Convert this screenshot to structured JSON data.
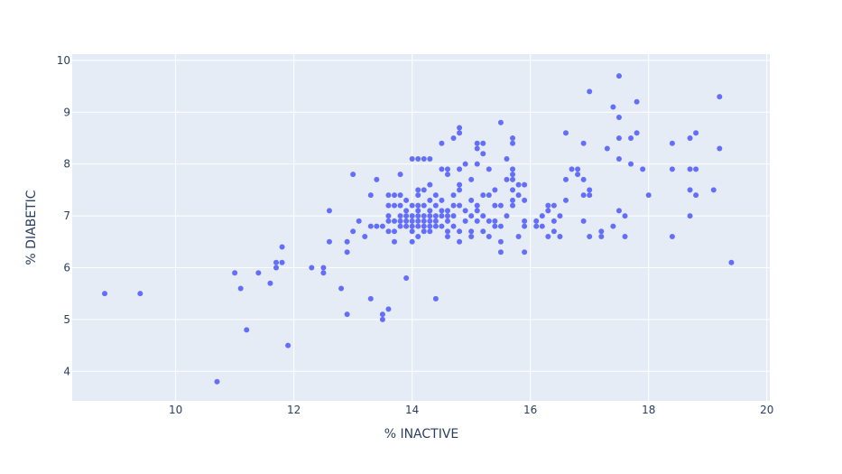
{
  "colors": {
    "plot_bg": "#e5ecf6",
    "grid": "#ffffff",
    "marker": "#636efa",
    "text": "#2a3f5f"
  },
  "chart_data": {
    "type": "scatter",
    "xlabel": "% INACTIVE",
    "ylabel": "% DIABETIC",
    "xlim": [
      8.25,
      20.05
    ],
    "ylim": [
      3.43,
      10.12
    ],
    "xticks": [
      10,
      12,
      14,
      16,
      18,
      20
    ],
    "yticks": [
      4,
      5,
      6,
      7,
      8,
      9,
      10
    ],
    "grid": true,
    "legend": "none",
    "series": [
      {
        "points": [
          [
            8.8,
            5.5
          ],
          [
            9.4,
            5.5
          ],
          [
            10.7,
            3.8
          ],
          [
            11.0,
            5.9
          ],
          [
            11.1,
            5.6
          ],
          [
            11.2,
            4.8
          ],
          [
            11.4,
            5.9
          ],
          [
            11.6,
            5.7
          ],
          [
            11.7,
            6.0
          ],
          [
            11.7,
            6.1
          ],
          [
            11.8,
            6.1
          ],
          [
            11.8,
            6.4
          ],
          [
            11.9,
            4.5
          ],
          [
            12.3,
            6.0
          ],
          [
            12.5,
            6.0
          ],
          [
            12.5,
            5.9
          ],
          [
            12.6,
            7.1
          ],
          [
            12.6,
            6.5
          ],
          [
            12.8,
            5.6
          ],
          [
            12.9,
            6.3
          ],
          [
            12.9,
            6.5
          ],
          [
            12.9,
            5.1
          ],
          [
            13.0,
            7.8
          ],
          [
            13.0,
            6.7
          ],
          [
            13.1,
            6.9
          ],
          [
            13.2,
            6.6
          ],
          [
            13.3,
            7.4
          ],
          [
            13.3,
            6.8
          ],
          [
            13.3,
            5.4
          ],
          [
            13.4,
            7.7
          ],
          [
            13.4,
            6.8
          ],
          [
            13.5,
            6.8
          ],
          [
            13.5,
            5.1
          ],
          [
            13.5,
            5.0
          ],
          [
            13.6,
            7.2
          ],
          [
            13.6,
            7.4
          ],
          [
            13.6,
            7.0
          ],
          [
            13.6,
            6.9
          ],
          [
            13.6,
            6.7
          ],
          [
            13.6,
            5.2
          ],
          [
            13.7,
            7.4
          ],
          [
            13.7,
            7.2
          ],
          [
            13.7,
            6.9
          ],
          [
            13.7,
            6.7
          ],
          [
            13.7,
            6.5
          ],
          [
            13.8,
            7.8
          ],
          [
            13.8,
            7.4
          ],
          [
            13.8,
            7.2
          ],
          [
            13.8,
            7.0
          ],
          [
            13.8,
            6.9
          ],
          [
            13.8,
            6.8
          ],
          [
            13.9,
            7.3
          ],
          [
            13.9,
            7.1
          ],
          [
            13.9,
            7.0
          ],
          [
            13.9,
            6.9
          ],
          [
            13.9,
            6.8
          ],
          [
            13.9,
            5.8
          ],
          [
            14.0,
            7.2
          ],
          [
            14.0,
            7.0
          ],
          [
            14.0,
            6.9
          ],
          [
            14.0,
            6.8
          ],
          [
            14.0,
            6.7
          ],
          [
            14.0,
            6.5
          ],
          [
            14.0,
            8.1
          ],
          [
            14.1,
            8.1
          ],
          [
            14.1,
            7.5
          ],
          [
            14.1,
            7.4
          ],
          [
            14.1,
            7.2
          ],
          [
            14.1,
            7.1
          ],
          [
            14.1,
            7.0
          ],
          [
            14.1,
            6.9
          ],
          [
            14.1,
            6.8
          ],
          [
            14.1,
            6.6
          ],
          [
            14.2,
            8.1
          ],
          [
            14.2,
            7.5
          ],
          [
            14.2,
            7.2
          ],
          [
            14.2,
            7.0
          ],
          [
            14.2,
            6.9
          ],
          [
            14.2,
            6.8
          ],
          [
            14.2,
            6.7
          ],
          [
            14.3,
            8.1
          ],
          [
            14.3,
            7.6
          ],
          [
            14.3,
            7.3
          ],
          [
            14.3,
            7.1
          ],
          [
            14.3,
            7.0
          ],
          [
            14.3,
            6.9
          ],
          [
            14.3,
            6.8
          ],
          [
            14.3,
            6.7
          ],
          [
            14.4,
            7.4
          ],
          [
            14.4,
            7.2
          ],
          [
            14.4,
            7.0
          ],
          [
            14.4,
            6.9
          ],
          [
            14.4,
            6.8
          ],
          [
            14.4,
            5.4
          ],
          [
            14.5,
            8.4
          ],
          [
            14.5,
            7.9
          ],
          [
            14.5,
            7.3
          ],
          [
            14.5,
            7.1
          ],
          [
            14.5,
            7.0
          ],
          [
            14.5,
            6.8
          ],
          [
            14.6,
            7.9
          ],
          [
            14.6,
            7.8
          ],
          [
            14.6,
            7.1
          ],
          [
            14.6,
            7.0
          ],
          [
            14.6,
            6.9
          ],
          [
            14.6,
            6.7
          ],
          [
            14.6,
            6.6
          ],
          [
            14.7,
            8.5
          ],
          [
            14.7,
            7.4
          ],
          [
            14.7,
            7.2
          ],
          [
            14.7,
            7.0
          ],
          [
            14.7,
            6.8
          ],
          [
            14.8,
            8.7
          ],
          [
            14.8,
            8.6
          ],
          [
            14.8,
            7.9
          ],
          [
            14.8,
            7.6
          ],
          [
            14.8,
            7.5
          ],
          [
            14.8,
            7.2
          ],
          [
            14.8,
            6.7
          ],
          [
            14.8,
            6.5
          ],
          [
            14.9,
            8.0
          ],
          [
            14.9,
            7.1
          ],
          [
            14.9,
            6.9
          ],
          [
            15.0,
            7.7
          ],
          [
            15.0,
            7.3
          ],
          [
            15.0,
            7.0
          ],
          [
            15.0,
            6.7
          ],
          [
            15.0,
            6.6
          ],
          [
            15.1,
            8.4
          ],
          [
            15.1,
            8.3
          ],
          [
            15.1,
            8.0
          ],
          [
            15.1,
            7.2
          ],
          [
            15.1,
            7.1
          ],
          [
            15.1,
            6.9
          ],
          [
            15.2,
            8.4
          ],
          [
            15.2,
            8.2
          ],
          [
            15.2,
            7.4
          ],
          [
            15.2,
            7.0
          ],
          [
            15.2,
            6.7
          ],
          [
            15.3,
            7.9
          ],
          [
            15.3,
            7.4
          ],
          [
            15.3,
            6.9
          ],
          [
            15.3,
            6.6
          ],
          [
            15.4,
            7.5
          ],
          [
            15.4,
            7.2
          ],
          [
            15.4,
            6.9
          ],
          [
            15.4,
            6.8
          ],
          [
            15.5,
            8.8
          ],
          [
            15.5,
            7.2
          ],
          [
            15.5,
            6.8
          ],
          [
            15.5,
            6.5
          ],
          [
            15.5,
            6.3
          ],
          [
            15.6,
            8.1
          ],
          [
            15.6,
            7.7
          ],
          [
            15.6,
            7.0
          ],
          [
            15.7,
            8.5
          ],
          [
            15.7,
            8.4
          ],
          [
            15.7,
            7.9
          ],
          [
            15.7,
            7.8
          ],
          [
            15.7,
            7.7
          ],
          [
            15.7,
            7.5
          ],
          [
            15.7,
            7.3
          ],
          [
            15.7,
            7.2
          ],
          [
            15.8,
            7.6
          ],
          [
            15.8,
            7.4
          ],
          [
            15.8,
            6.6
          ],
          [
            15.9,
            7.6
          ],
          [
            15.9,
            7.3
          ],
          [
            15.9,
            6.9
          ],
          [
            15.9,
            6.8
          ],
          [
            15.9,
            6.3
          ],
          [
            16.1,
            6.9
          ],
          [
            16.1,
            6.8
          ],
          [
            16.2,
            7.0
          ],
          [
            16.2,
            6.8
          ],
          [
            16.3,
            7.2
          ],
          [
            16.3,
            7.1
          ],
          [
            16.3,
            6.6
          ],
          [
            16.4,
            7.2
          ],
          [
            16.4,
            6.9
          ],
          [
            16.4,
            6.7
          ],
          [
            16.5,
            7.0
          ],
          [
            16.5,
            6.6
          ],
          [
            16.6,
            8.6
          ],
          [
            16.6,
            7.7
          ],
          [
            16.6,
            7.3
          ],
          [
            16.7,
            7.9
          ],
          [
            16.8,
            7.9
          ],
          [
            16.8,
            7.8
          ],
          [
            16.9,
            8.4
          ],
          [
            16.9,
            7.7
          ],
          [
            16.9,
            7.4
          ],
          [
            16.9,
            6.9
          ],
          [
            17.0,
            9.4
          ],
          [
            17.0,
            7.5
          ],
          [
            17.0,
            7.4
          ],
          [
            17.0,
            6.6
          ],
          [
            17.2,
            6.7
          ],
          [
            17.2,
            6.6
          ],
          [
            17.3,
            8.3
          ],
          [
            17.4,
            9.1
          ],
          [
            17.4,
            6.8
          ],
          [
            17.5,
            9.7
          ],
          [
            17.5,
            8.9
          ],
          [
            17.5,
            8.5
          ],
          [
            17.5,
            8.1
          ],
          [
            17.5,
            7.1
          ],
          [
            17.6,
            7.0
          ],
          [
            17.6,
            6.6
          ],
          [
            17.7,
            8.5
          ],
          [
            17.7,
            8.0
          ],
          [
            17.8,
            9.2
          ],
          [
            17.8,
            8.6
          ],
          [
            17.9,
            7.9
          ],
          [
            18.0,
            7.4
          ],
          [
            18.4,
            8.4
          ],
          [
            18.4,
            7.9
          ],
          [
            18.4,
            6.6
          ],
          [
            18.7,
            8.5
          ],
          [
            18.7,
            7.9
          ],
          [
            18.7,
            7.5
          ],
          [
            18.7,
            7.0
          ],
          [
            18.8,
            8.6
          ],
          [
            18.8,
            7.9
          ],
          [
            18.8,
            7.4
          ],
          [
            19.1,
            7.5
          ],
          [
            19.2,
            9.3
          ],
          [
            19.2,
            8.3
          ],
          [
            19.4,
            6.1
          ]
        ]
      }
    ]
  }
}
